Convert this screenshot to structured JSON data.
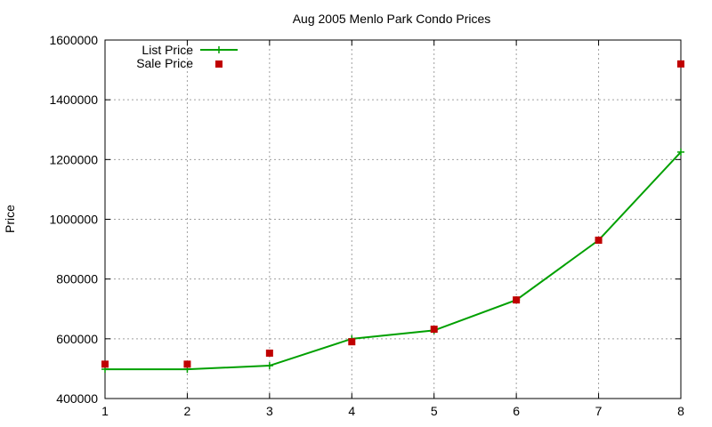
{
  "chart_data": {
    "type": "line",
    "title": "Aug 2005 Menlo Park Condo Prices",
    "xlabel": "",
    "ylabel": "Price",
    "xlim": [
      1,
      8
    ],
    "ylim": [
      400000,
      1600000
    ],
    "xticks": [
      "1",
      "2",
      "3",
      "4",
      "5",
      "6",
      "7",
      "8"
    ],
    "yticks": [
      "400000",
      "600000",
      "800000",
      "1000000",
      "1200000",
      "1400000",
      "1600000"
    ],
    "grid": true,
    "legend_position": "top-left",
    "series": [
      {
        "name": "List Price",
        "kind": "line+cross",
        "color": "#00a000",
        "x": [
          1,
          2,
          3,
          4,
          5,
          6,
          7,
          8
        ],
        "values": [
          498000,
          498000,
          510000,
          600000,
          628000,
          730000,
          930000,
          1225000
        ]
      },
      {
        "name": "Sale Price",
        "kind": "square",
        "color": "#c00000",
        "x": [
          1,
          2,
          3,
          4,
          5,
          6,
          7,
          8
        ],
        "values": [
          515000,
          515000,
          552000,
          590000,
          632000,
          730000,
          930000,
          1520000
        ]
      }
    ]
  }
}
